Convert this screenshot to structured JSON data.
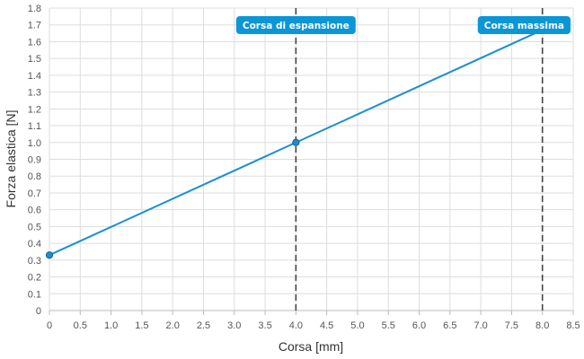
{
  "chart_data": {
    "type": "line",
    "title": "",
    "xlabel": "Corsa [mm]",
    "ylabel": "Forza elastica [N]",
    "xlim": [
      0,
      8.5
    ],
    "ylim": [
      0,
      1.8
    ],
    "x_ticks": [
      "0",
      "0.5",
      "1.0",
      "1.5",
      "2.0",
      "2.5",
      "3.0",
      "3.5",
      "4.0",
      "4.5",
      "5.0",
      "5.5",
      "6.0",
      "6.5",
      "7.0",
      "7.5",
      "8.0",
      "8.5"
    ],
    "y_ticks": [
      "0",
      "0.1",
      "0.2",
      "0.3",
      "0.4",
      "0.5",
      "0.6",
      "0.7",
      "0.8",
      "0.9",
      "1.0",
      "1.1",
      "1.2",
      "1.3",
      "1.4",
      "1.5",
      "1.6",
      "1.7",
      "1.8"
    ],
    "grid": true,
    "series": [
      {
        "color": "#1a8fd0",
        "x": [
          0,
          4.0,
          8.0
        ],
        "y": [
          0.33,
          1.0,
          1.67
        ],
        "markers": [
          true,
          true,
          false
        ]
      }
    ],
    "annotations": [
      {
        "label": "Corsa di espansione",
        "x": 4.0,
        "color": "#0b96d6"
      },
      {
        "label": "Corsa massima",
        "x": 8.0,
        "color": "#0b96d6"
      }
    ]
  }
}
